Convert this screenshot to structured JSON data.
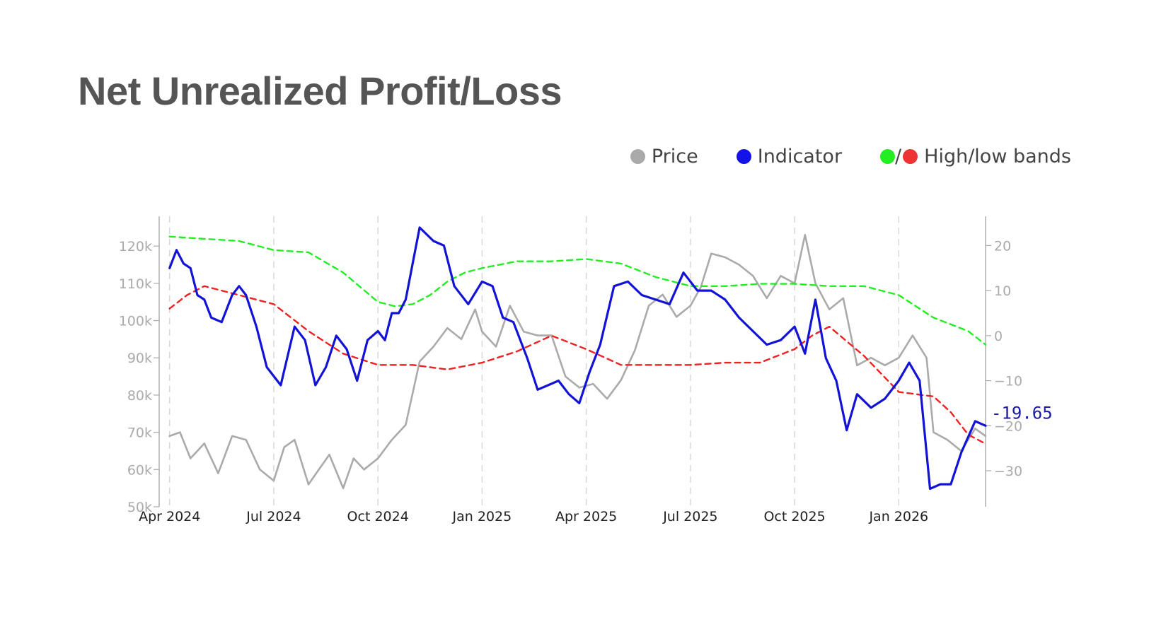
{
  "title": "Net Unrealized Profit/Loss",
  "legend": {
    "price": "Price",
    "indicator": "Indicator",
    "bands_sep": "/",
    "bands": "High/low bands"
  },
  "colors": {
    "price": "#aaaaaa",
    "indicator": "#1313d6",
    "high_band": "#22ee22",
    "low_band": "#ee2222",
    "title": "#555555"
  },
  "chart_data": {
    "type": "line",
    "title": "Net Unrealized Profit/Loss",
    "x_ticks": [
      "Apr 2024",
      "Jul 2024",
      "Oct 2024",
      "Jan 2025",
      "Apr 2025",
      "Jul 2025",
      "Oct 2025",
      "Jan 2026"
    ],
    "x_tick_months": [
      0,
      3,
      6,
      9,
      12,
      15,
      18,
      21
    ],
    "x_range_months": [
      -0.3,
      23.5
    ],
    "left_axis": {
      "label": "Price",
      "range": [
        50000,
        128000
      ],
      "ticks": [
        {
          "v": 50000,
          "label": "50k"
        },
        {
          "v": 60000,
          "label": "60k"
        },
        {
          "v": 70000,
          "label": "70k"
        },
        {
          "v": 80000,
          "label": "80k"
        },
        {
          "v": 90000,
          "label": "90k"
        },
        {
          "v": 100000,
          "label": "100k"
        },
        {
          "v": 110000,
          "label": "110k"
        },
        {
          "v": 120000,
          "label": "120k"
        }
      ]
    },
    "right_axis": {
      "label": "Indicator",
      "range": [
        -38,
        26.5
      ],
      "ticks": [
        {
          "v": 20,
          "label": "20"
        },
        {
          "v": 10,
          "label": "10"
        },
        {
          "v": 0,
          "label": "0"
        },
        {
          "v": -10,
          "label": "−10"
        },
        {
          "v": -20,
          "label": "−20"
        },
        {
          "v": -30,
          "label": "−30"
        }
      ]
    },
    "last_value_label": "-19.65",
    "series": [
      {
        "name": "Price",
        "axis": "left",
        "x": [
          0,
          0.3,
          0.6,
          1,
          1.4,
          1.8,
          2.2,
          2.6,
          3,
          3.3,
          3.6,
          4,
          4.3,
          4.6,
          5,
          5.3,
          5.6,
          6,
          6.4,
          6.8,
          7.2,
          7.6,
          8,
          8.4,
          8.8,
          9,
          9.4,
          9.8,
          10.2,
          10.6,
          11,
          11.4,
          11.8,
          12.2,
          12.6,
          13,
          13.4,
          13.8,
          14.2,
          14.6,
          15,
          15.3,
          15.6,
          16,
          16.4,
          16.8,
          17.2,
          17.6,
          18,
          18.3,
          18.6,
          19,
          19.4,
          19.8,
          20.2,
          20.6,
          21,
          21.4,
          21.8,
          22,
          22.4,
          22.8,
          23.2,
          23.5
        ],
        "values": [
          69000,
          70000,
          63000,
          67000,
          59000,
          69000,
          68000,
          60000,
          57000,
          66000,
          68000,
          56000,
          60000,
          64000,
          55000,
          63000,
          60000,
          63000,
          68000,
          72000,
          89000,
          93000,
          98000,
          95000,
          103000,
          97000,
          93000,
          104000,
          97000,
          96000,
          96000,
          85000,
          82000,
          83000,
          79000,
          84000,
          92000,
          104000,
          107000,
          101000,
          104000,
          109000,
          118000,
          117000,
          115000,
          112000,
          106000,
          112000,
          110000,
          123000,
          110000,
          103000,
          106000,
          88000,
          90000,
          88000,
          90000,
          96000,
          90000,
          70000,
          68000,
          65000,
          71000,
          69000
        ]
      },
      {
        "name": "Indicator",
        "axis": "right",
        "x": [
          0,
          0.2,
          0.4,
          0.6,
          0.8,
          1,
          1.2,
          1.5,
          1.8,
          2,
          2.2,
          2.5,
          2.8,
          3.2,
          3.6,
          3.9,
          4.2,
          4.5,
          4.8,
          5.1,
          5.4,
          5.7,
          6,
          6.2,
          6.4,
          6.6,
          6.8,
          7.2,
          7.6,
          7.9,
          8.2,
          8.6,
          9,
          9.3,
          9.6,
          9.9,
          10.3,
          10.6,
          10.9,
          11.2,
          11.5,
          11.8,
          12.1,
          12.4,
          12.8,
          13.2,
          13.6,
          14,
          14.4,
          14.8,
          15.2,
          15.6,
          16,
          16.4,
          16.8,
          17.2,
          17.6,
          18,
          18.3,
          18.6,
          18.9,
          19.2,
          19.5,
          19.8,
          20.2,
          20.6,
          21,
          21.3,
          21.6,
          21.9,
          22.2,
          22.5,
          22.8,
          23.2,
          23.5
        ],
        "values": [
          15,
          19,
          16,
          15,
          9,
          8,
          4,
          3,
          9,
          11,
          9,
          2,
          -7,
          -11,
          2,
          -1,
          -11,
          -7,
          0,
          -3,
          -10,
          -1,
          1,
          -1,
          5,
          5,
          8,
          24,
          21,
          20,
          11,
          7,
          12,
          11,
          4,
          3,
          -5,
          -12,
          -11,
          -10,
          -13,
          -15,
          -8,
          -2,
          11,
          12,
          9,
          8,
          7,
          14,
          10,
          10,
          8,
          4,
          1,
          -2,
          -1,
          2,
          -4,
          8,
          -5,
          -10,
          -21,
          -13,
          -16,
          -14,
          -10,
          -6,
          -10,
          -34,
          -33,
          -33,
          -26,
          -19,
          -20
        ]
      },
      {
        "name": "High band",
        "axis": "right",
        "x": [
          0,
          1,
          2,
          3,
          4,
          5,
          6,
          6.5,
          7,
          7.5,
          8,
          8.5,
          9,
          10,
          11,
          12,
          13,
          14,
          15,
          16,
          17,
          18,
          19,
          20,
          21,
          22,
          23,
          23.5
        ],
        "values": [
          22,
          21.5,
          21,
          19,
          18.5,
          14,
          7.5,
          6.5,
          7,
          9,
          12,
          14,
          15,
          16.5,
          16.5,
          17,
          16,
          13,
          11,
          11,
          11.5,
          11.5,
          11,
          11,
          9,
          4,
          1,
          -2
        ]
      },
      {
        "name": "Low band",
        "axis": "right",
        "x": [
          0,
          0.5,
          1,
          2,
          3,
          4,
          5,
          6,
          7,
          8,
          9,
          10,
          11,
          12,
          13,
          14,
          15,
          16,
          17,
          18,
          18.5,
          19,
          20,
          21,
          22,
          22.5,
          23,
          23.5
        ],
        "values": [
          6,
          9,
          11,
          9,
          7,
          1,
          -4,
          -6.5,
          -6.5,
          -7.5,
          -6,
          -3.5,
          0,
          -3,
          -6.5,
          -6.5,
          -6.5,
          -6,
          -6,
          -3,
          0,
          2,
          -4.5,
          -12.5,
          -13.5,
          -17,
          -22,
          -24
        ]
      }
    ]
  }
}
